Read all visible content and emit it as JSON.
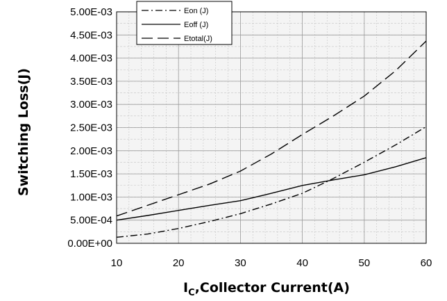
{
  "chart_data": {
    "type": "line",
    "xlabel": "",
    "ylabel": "Switching Loss(J)",
    "xlabel_parts": {
      "main": "I",
      "sub": "C",
      "rest": ",Collector Current(A)"
    },
    "xlim": [
      10,
      60
    ],
    "ylim": [
      0,
      0.005
    ],
    "x_ticks": [
      "10",
      "20",
      "30",
      "40",
      "50",
      "60"
    ],
    "x_tick_values": [
      10,
      20,
      30,
      40,
      50,
      60
    ],
    "y_ticks": [
      "0.00E+00",
      "5.00E-04",
      "1.00E-03",
      "1.50E-03",
      "2.00E-03",
      "2.50E-03",
      "3.00E-03",
      "3.50E-03",
      "4.00E-03",
      "4.50E-03",
      "5.00E-03"
    ],
    "y_tick_values": [
      0,
      0.0005,
      0.001,
      0.0015,
      0.002,
      0.0025,
      0.003,
      0.0035,
      0.004,
      0.0045,
      0.005
    ],
    "grid": true,
    "legend_position": "top-left",
    "series": [
      {
        "name": "Eon (J)",
        "style": "dash-dot",
        "color": "#000000",
        "x": [
          10,
          15,
          20,
          25,
          30,
          35,
          40,
          45,
          50,
          55,
          60
        ],
        "y": [
          0.00013,
          0.0002,
          0.00032,
          0.00047,
          0.00064,
          0.00085,
          0.00108,
          0.0014,
          0.00175,
          0.00212,
          0.00252
        ]
      },
      {
        "name": "Eoff (J)",
        "style": "solid",
        "color": "#000000",
        "x": [
          10,
          15,
          20,
          25,
          30,
          35,
          40,
          45,
          50,
          55,
          60
        ],
        "y": [
          0.0005,
          0.0006,
          0.00071,
          0.00082,
          0.00092,
          0.00108,
          0.00125,
          0.00137,
          0.00148,
          0.00165,
          0.00185
        ]
      },
      {
        "name": "Etotal(J)",
        "style": "long-dash",
        "color": "#000000",
        "x": [
          10,
          15,
          20,
          25,
          30,
          35,
          40,
          45,
          50,
          55,
          60
        ],
        "y": [
          0.00059,
          0.00082,
          0.00105,
          0.00128,
          0.00156,
          0.00193,
          0.00235,
          0.00275,
          0.00318,
          0.00372,
          0.00437
        ]
      }
    ]
  }
}
